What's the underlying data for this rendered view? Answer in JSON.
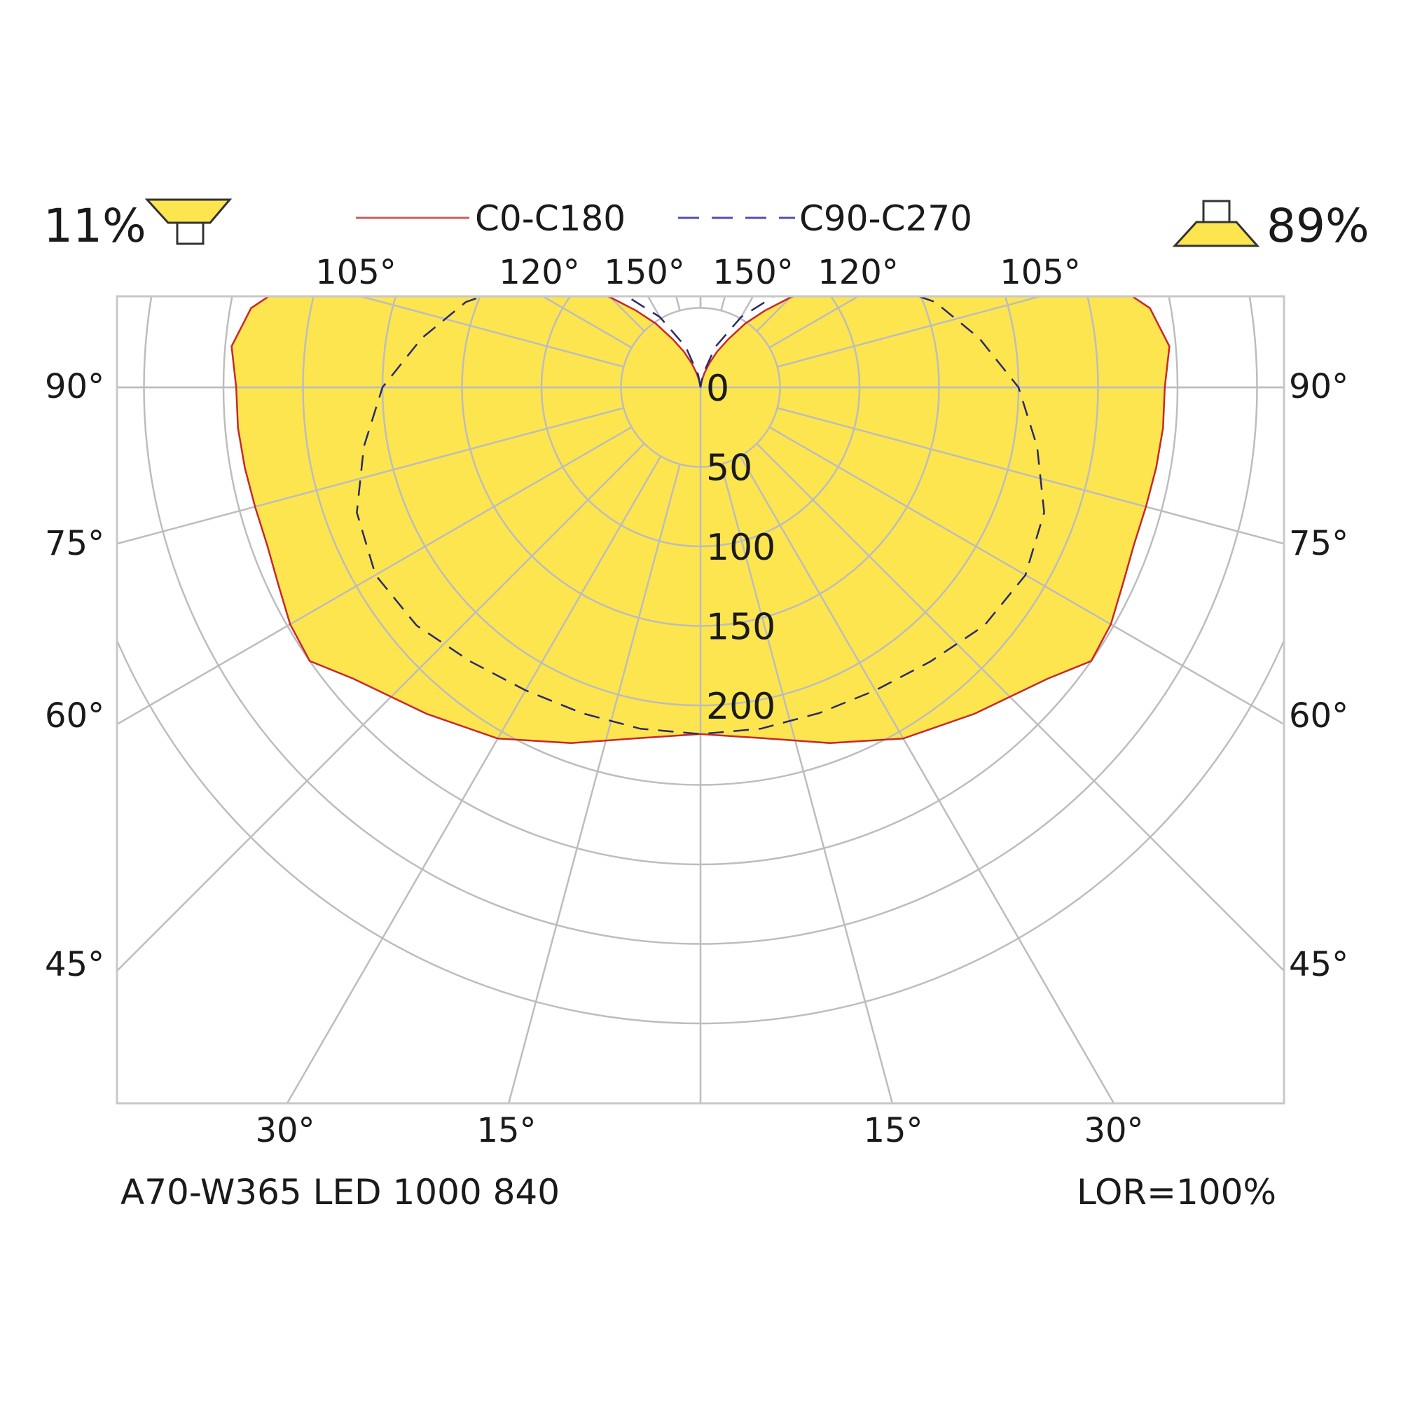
{
  "header": {
    "downward_percent": "11%",
    "upward_percent": "89%",
    "downward_icon": "downward-light-cone-icon",
    "upward_icon": "upward-light-cone-icon"
  },
  "footer": {
    "product": "A70-W365 LED 1000 840",
    "lor": "LOR=100%"
  },
  "colors": {
    "fill": "#fde54f",
    "c0_line": "#c8282a",
    "c90_line": "#2a2a6a",
    "c0_legend": "#c06060",
    "c90_legend": "#5050b0",
    "grid": "#bdbdbd",
    "frame": "#c8c8c8"
  },
  "chart_data": {
    "type": "polar",
    "radial_ticks": [
      "0",
      "50",
      "100",
      "150",
      "200"
    ],
    "radial_values": [
      0,
      50,
      100,
      150,
      200
    ],
    "angle_labels": {
      "top": [
        "105°",
        "120°",
        "150°",
        "150°",
        "120°",
        "105°"
      ],
      "left": [
        "90°",
        "75°",
        "60°",
        "45°"
      ],
      "right": [
        "90°",
        "75°",
        "60°",
        "45°"
      ],
      "bottom": [
        "30°",
        "15°",
        "15°",
        "30°"
      ]
    },
    "series": [
      {
        "name": "C0-C180",
        "style": "solid",
        "filled": true,
        "gamma_deg": [
          0,
          10,
          20,
          30,
          40,
          50,
          55,
          60,
          65,
          70,
          75,
          80,
          85,
          90,
          95,
          100,
          105,
          110,
          115,
          120,
          125,
          130,
          135,
          140,
          145,
          150,
          155,
          160,
          165,
          170,
          175,
          180
        ],
        "intensity": [
          218,
          224,
          238,
          255,
          268,
          285,
          300,
          298,
          293,
          290,
          290,
          291,
          292,
          292,
          296,
          287,
          264,
          207,
          164,
          134,
          112,
          96,
          80,
          63,
          49,
          35,
          25,
          16,
          9,
          4,
          1,
          0
        ]
      },
      {
        "name": "C90-C270",
        "style": "dashed",
        "filled": false,
        "gamma_deg": [
          0,
          10,
          20,
          30,
          40,
          50,
          60,
          70,
          80,
          90,
          100,
          110,
          120,
          130,
          140,
          150,
          160,
          170,
          180
        ],
        "intensity": [
          218,
          218,
          218,
          220,
          225,
          233,
          236,
          230,
          215,
          200,
          178,
          157,
          131,
          103,
          78,
          51,
          27,
          8,
          0
        ]
      }
    ]
  }
}
